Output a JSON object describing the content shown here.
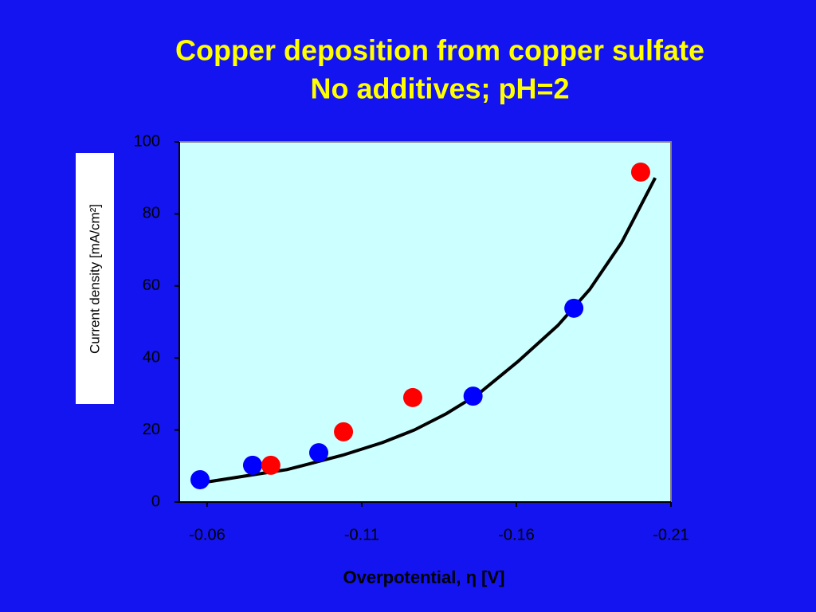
{
  "chart_data": {
    "type": "scatter",
    "title": "Copper deposition from copper sulfate",
    "subtitle": "No additives; pH=2",
    "x_label": "Overpotential, η [V]",
    "y_label": "Current density [mA/cm²]",
    "xlim": [
      -0.051,
      -0.21
    ],
    "xticks": [
      -0.06,
      -0.11,
      -0.16,
      -0.21
    ],
    "ylim": [
      0,
      100
    ],
    "yticks": [
      0,
      20,
      40,
      60,
      80,
      100
    ],
    "series": [
      {
        "type": "scatter",
        "color": "#0000ff",
        "x": [
          -0.0577,
          -0.0747,
          -0.0961,
          -0.146,
          -0.1786
        ],
        "values": [
          6.2,
          10.2,
          13.7,
          29.4,
          53.8
        ]
      },
      {
        "type": "scatter",
        "color": "#ff0000",
        "x": [
          -0.0806,
          -0.1041,
          -0.1265,
          -0.2002
        ],
        "values": [
          10.2,
          19.5,
          29.0,
          91.6
        ]
      },
      {
        "type": "line",
        "color": "#000000",
        "x": [
          -0.0595,
          -0.078,
          -0.0858,
          -0.1038,
          -0.1167,
          -0.127,
          -0.1373,
          -0.1477,
          -0.1605,
          -0.1734,
          -0.1837,
          -0.194,
          -0.2049
        ],
        "values": [
          5.5,
          8,
          9,
          13,
          16.5,
          20,
          24.5,
          30,
          39,
          49,
          59,
          72,
          90
        ]
      }
    ]
  }
}
